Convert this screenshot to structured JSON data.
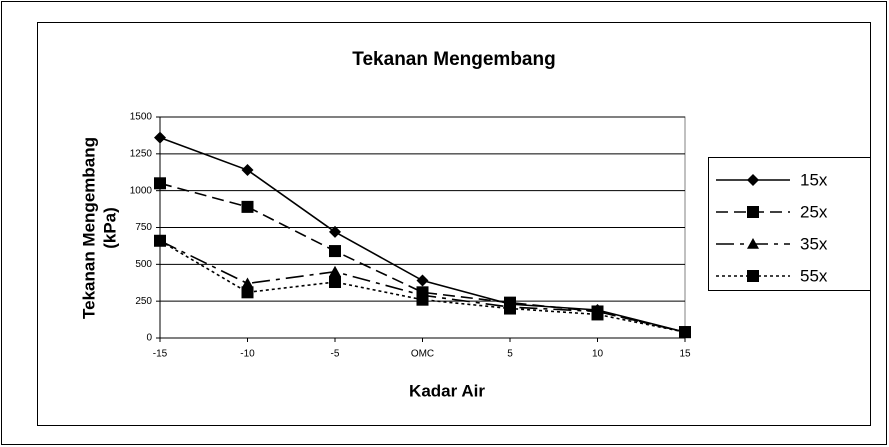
{
  "chart_data": {
    "type": "line",
    "title": "Tekanan Mengembang",
    "x_label": "Kadar Air",
    "y_label": [
      "Tekanan Mengembang",
      "(kPa)"
    ],
    "categories": [
      "-15",
      "-10",
      "-5",
      "OMC",
      "5",
      "10",
      "15"
    ],
    "series": [
      {
        "name": "15x",
        "color": "#000000",
        "marker": "diamond",
        "dash": "solid",
        "values": [
          1360,
          1140,
          720,
          390,
          230,
          190,
          40
        ]
      },
      {
        "name": "25x",
        "color": "#000000",
        "marker": "square",
        "dash": "dash",
        "values": [
          1050,
          890,
          590,
          310,
          240,
          180,
          40
        ]
      },
      {
        "name": "35x",
        "color": "#000000",
        "marker": "triangle",
        "dash": "longdash",
        "values": [
          660,
          370,
          450,
          290,
          210,
          180,
          40
        ]
      },
      {
        "name": "55x",
        "color": "#000000",
        "marker": "square",
        "dash": "dot",
        "values": [
          660,
          310,
          380,
          260,
          200,
          160,
          40
        ]
      }
    ],
    "ylim": [
      0,
      1500
    ],
    "yticks": [
      0,
      250,
      500,
      750,
      1000,
      1250,
      1500
    ],
    "grid": true,
    "legend": "right"
  }
}
